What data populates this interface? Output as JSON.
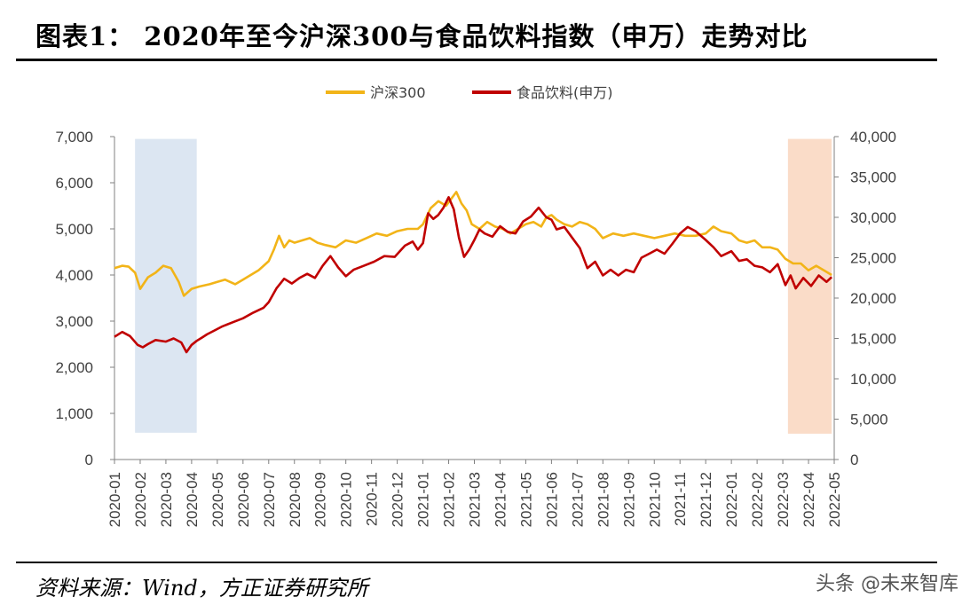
{
  "header": {
    "title": "图表1：  2020年至今沪深300与食品饮料指数（申万）走势对比"
  },
  "footer": {
    "source": "资料来源：Wind，方正证券研究所",
    "watermark": "头条 @未来智库"
  },
  "chart_data": {
    "type": "line",
    "x_labels": [
      "2020-01",
      "2020-02",
      "2020-03",
      "2020-04",
      "2020-05",
      "2020-06",
      "2020-07",
      "2020-08",
      "2020-09",
      "2020-10",
      "2020-11",
      "2020-12",
      "2021-01",
      "2021-02",
      "2021-03",
      "2021-04",
      "2021-05",
      "2021-06",
      "2021-07",
      "2021-08",
      "2021-09",
      "2021-10",
      "2021-11",
      "2021-12",
      "2022-01",
      "2022-02",
      "2022-03",
      "2022-04",
      "2022-05"
    ],
    "y_left": {
      "min": 0,
      "max": 7000,
      "ticks": [
        0,
        1000,
        2000,
        3000,
        4000,
        5000,
        6000,
        7000
      ],
      "tick_labels": [
        "0",
        "1,000",
        "2,000",
        "3,000",
        "4,000",
        "5,000",
        "6,000",
        "7,000"
      ]
    },
    "y_right": {
      "min": 0,
      "max": 40000,
      "ticks": [
        0,
        5000,
        10000,
        15000,
        20000,
        25000,
        30000,
        35000,
        40000
      ],
      "tick_labels": [
        "0",
        "5,000",
        "10,000",
        "15,000",
        "20,000",
        "25,000",
        "30,000",
        "35,000",
        "40,000"
      ]
    },
    "legend_position": "top-center",
    "grid": false,
    "series": [
      {
        "name": "沪深300",
        "axis": "left",
        "color": "#F2B418",
        "x": [
          0,
          0.3,
          0.55,
          0.8,
          1.0,
          1.3,
          1.6,
          1.9,
          2.2,
          2.5,
          2.7,
          3.0,
          3.3,
          3.7,
          4.0,
          4.3,
          4.7,
          5.0,
          5.3,
          5.6,
          5.8,
          6.0,
          6.2,
          6.4,
          6.6,
          6.8,
          7.0,
          7.3,
          7.6,
          7.9,
          8.2,
          8.6,
          9.0,
          9.4,
          9.8,
          10.2,
          10.6,
          11.0,
          11.4,
          11.8,
          12.0,
          12.3,
          12.6,
          12.9,
          13.1,
          13.3,
          13.5,
          13.7,
          13.9,
          14.2,
          14.5,
          14.8,
          15.1,
          15.4,
          15.7,
          16.0,
          16.3,
          16.6,
          16.8,
          17.0,
          17.2,
          17.5,
          17.8,
          18.1,
          18.4,
          18.7,
          19.0,
          19.4,
          19.8,
          20.2,
          20.6,
          21.0,
          21.4,
          21.8,
          22.2,
          22.6,
          23.0,
          23.3,
          23.6,
          24.0,
          24.3,
          24.6,
          24.9,
          25.2,
          25.5,
          25.8,
          26.1,
          26.4,
          26.7,
          27.0,
          27.3,
          27.6,
          27.9
        ],
        "y": [
          4150,
          4200,
          4180,
          4050,
          3700,
          3950,
          4050,
          4200,
          4150,
          3850,
          3550,
          3700,
          3750,
          3800,
          3850,
          3900,
          3800,
          3900,
          4000,
          4100,
          4200,
          4300,
          4550,
          4850,
          4600,
          4750,
          4700,
          4750,
          4800,
          4700,
          4650,
          4600,
          4750,
          4700,
          4800,
          4900,
          4850,
          4950,
          5000,
          5000,
          5100,
          5450,
          5600,
          5500,
          5650,
          5800,
          5550,
          5400,
          5100,
          5000,
          5150,
          5050,
          5000,
          4900,
          5000,
          5100,
          5150,
          5050,
          5250,
          5300,
          5200,
          5100,
          5050,
          5150,
          5100,
          5000,
          4800,
          4900,
          4850,
          4900,
          4850,
          4800,
          4850,
          4900,
          4850,
          4850,
          4900,
          5050,
          4950,
          4900,
          4750,
          4700,
          4750,
          4600,
          4600,
          4550,
          4350,
          4250,
          4250,
          4100,
          4200,
          4100,
          4000
        ]
      },
      {
        "name": "食品饮料(申万)",
        "axis": "right",
        "color": "#C00000",
        "x": [
          0,
          0.3,
          0.6,
          0.9,
          1.1,
          1.3,
          1.6,
          2.0,
          2.3,
          2.6,
          2.8,
          3.0,
          3.2,
          3.4,
          3.6,
          3.9,
          4.2,
          4.6,
          5.0,
          5.4,
          5.8,
          6.0,
          6.3,
          6.6,
          6.9,
          7.2,
          7.5,
          7.8,
          8.1,
          8.4,
          8.7,
          9.0,
          9.3,
          9.7,
          10.1,
          10.5,
          10.9,
          11.3,
          11.6,
          11.8,
          12.0,
          12.2,
          12.4,
          12.6,
          12.8,
          13.0,
          13.2,
          13.4,
          13.6,
          13.8,
          14.0,
          14.2,
          14.4,
          14.7,
          15.0,
          15.3,
          15.6,
          15.9,
          16.2,
          16.5,
          16.8,
          17.0,
          17.2,
          17.5,
          17.8,
          18.1,
          18.4,
          18.7,
          19.0,
          19.3,
          19.6,
          19.9,
          20.2,
          20.5,
          20.8,
          21.1,
          21.4,
          21.7,
          22.0,
          22.3,
          22.6,
          23.0,
          23.3,
          23.6,
          24.0,
          24.3,
          24.6,
          24.9,
          25.2,
          25.5,
          25.8,
          26.1,
          26.3,
          26.5,
          26.8,
          27.1,
          27.4,
          27.7,
          27.9
        ],
        "y": [
          15200,
          15800,
          15300,
          14200,
          13900,
          14300,
          14800,
          14600,
          15000,
          14500,
          13300,
          14200,
          14700,
          15100,
          15500,
          16000,
          16500,
          17000,
          17500,
          18200,
          18800,
          19500,
          21200,
          22400,
          21800,
          22500,
          23000,
          22500,
          24000,
          25200,
          23800,
          22700,
          23500,
          24000,
          24500,
          25200,
          25100,
          26500,
          27000,
          26000,
          26800,
          30500,
          29800,
          30300,
          31200,
          32500,
          31000,
          27500,
          25100,
          26000,
          27200,
          28500,
          28000,
          27600,
          28900,
          28200,
          28000,
          29500,
          30100,
          31200,
          30000,
          29700,
          28500,
          28800,
          27500,
          26200,
          23700,
          24500,
          22800,
          23500,
          22800,
          23500,
          23200,
          25000,
          25500,
          26000,
          25500,
          26700,
          28000,
          28800,
          28300,
          27200,
          26300,
          25200,
          25800,
          24600,
          24800,
          24000,
          23800,
          23200,
          24200,
          21600,
          22800,
          21200,
          22500,
          21500,
          22800,
          22000,
          22600
        ]
      }
    ],
    "annotations": [
      {
        "type": "shaded-region",
        "color": "#DCE6F2",
        "x_start": 0.8,
        "x_end": 3.2,
        "y_left_top": 6950,
        "y_left_bottom": 580
      },
      {
        "type": "shaded-region",
        "color": "#FADCC8",
        "x_start": 26.2,
        "x_end": 27.9,
        "y_left_top": 6950,
        "y_left_bottom": 560
      }
    ]
  }
}
